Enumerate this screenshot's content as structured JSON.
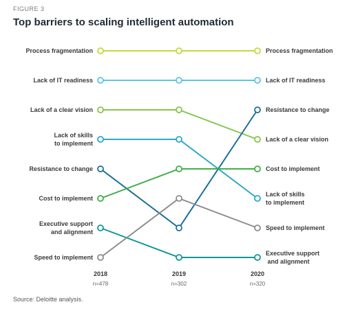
{
  "figure_label": "FIGURE 3",
  "title": "Top barriers to scaling intelligent automation",
  "source": "Source: Deloitte analysis.",
  "chart_data": {
    "type": "line",
    "chart_subtype": "bump",
    "title": "Top barriers to scaling intelligent automation",
    "x": [
      "2018",
      "2019",
      "2020"
    ],
    "sample_sizes": [
      "n=478",
      "n=302",
      "n=320"
    ],
    "y_meaning": "rank (1 = top barrier)",
    "ylim": [
      8,
      1
    ],
    "series": [
      {
        "name": "Process fragmentation",
        "ranks": [
          1,
          1,
          1
        ],
        "color": "#c5d93b"
      },
      {
        "name": "Lack of IT readiness",
        "ranks": [
          2,
          2,
          2
        ],
        "color": "#5cc5e3"
      },
      {
        "name": "Lack of a clear vision",
        "ranks": [
          3,
          3,
          4
        ],
        "color": "#86c54a"
      },
      {
        "name": "Lack of skills to implement",
        "ranks": [
          4,
          4,
          6
        ],
        "color": "#2aa9c9"
      },
      {
        "name": "Resistance to change",
        "ranks": [
          5,
          7,
          3
        ],
        "color": "#1a6f98"
      },
      {
        "name": "Cost to implement",
        "ranks": [
          6,
          5,
          5
        ],
        "color": "#3fae48"
      },
      {
        "name": "Executive support and alignment",
        "ranks": [
          7,
          8,
          8
        ],
        "color": "#0f9696"
      },
      {
        "name": "Speed to implement",
        "ranks": [
          8,
          6,
          7
        ],
        "color": "#8c8c8c"
      }
    ],
    "left_labels": [
      [
        "Process fragmentation"
      ],
      [
        "Lack of IT readiness"
      ],
      [
        "Lack of a clear vision"
      ],
      [
        "Lack of skills",
        "to implement"
      ],
      [
        "Resistance to change"
      ],
      [
        "Cost to implement"
      ],
      [
        "Executive support",
        "and alignment"
      ],
      [
        "Speed to implement"
      ]
    ],
    "right_labels": [
      [
        "Process fragmentation"
      ],
      [
        "Lack of IT readiness"
      ],
      [
        "Resistance to change"
      ],
      [
        "Lack of a clear vision"
      ],
      [
        "Cost to implement"
      ],
      [
        "Lack of skills",
        "to implement"
      ],
      [
        "Speed to implement"
      ],
      [
        "Executive support",
        " and alignment"
      ]
    ]
  }
}
